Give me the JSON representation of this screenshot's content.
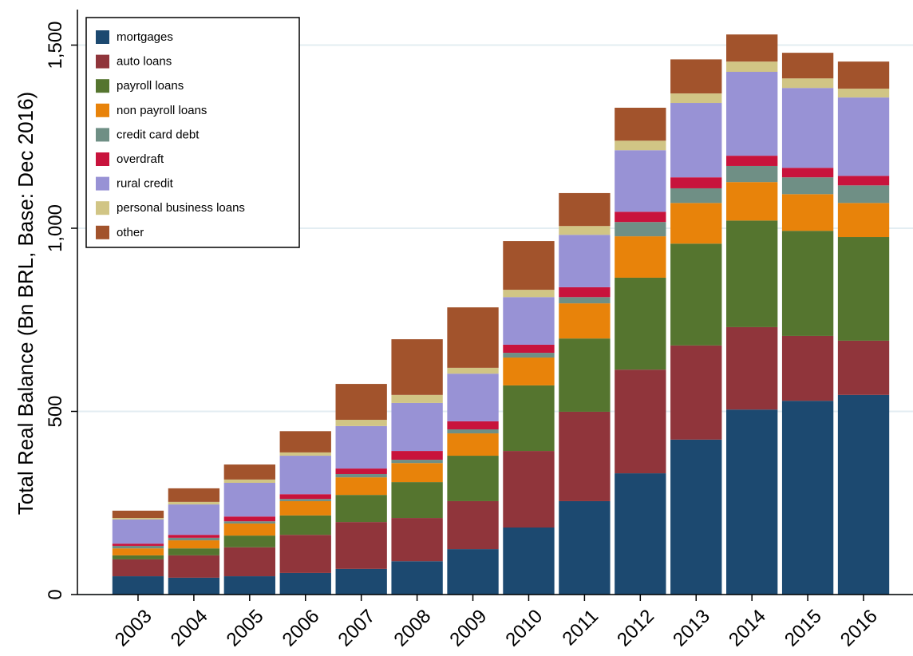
{
  "chart_data": {
    "type": "stacked_bar",
    "y_label": "Total Real Balance (Bn BRL, Base: Dec 2016)",
    "categories": [
      "2003",
      "2004",
      "2005",
      "2006",
      "2007",
      "2008",
      "2009",
      "2010",
      "2011",
      "2012",
      "2013",
      "2014",
      "2015",
      "2016"
    ],
    "series": [
      {
        "name": "mortgages",
        "color": "#1c4970",
        "values": [
          50,
          46,
          50,
          59,
          70,
          91,
          124,
          183,
          255,
          331,
          423,
          505,
          529,
          545
        ]
      },
      {
        "name": "auto loans",
        "color": "#90353b",
        "values": [
          46,
          61,
          79,
          104,
          128,
          118,
          131,
          209,
          244,
          283,
          257,
          225,
          177,
          148
        ]
      },
      {
        "name": "payroll loans",
        "color": "#55752f",
        "values": [
          11,
          19,
          32,
          53,
          74,
          98,
          124,
          179,
          200,
          251,
          278,
          291,
          287,
          283
        ]
      },
      {
        "name": "non payroll loans",
        "color": "#e8830a",
        "values": [
          19,
          22,
          33,
          39,
          48,
          52,
          61,
          76,
          96,
          113,
          111,
          105,
          100,
          93
        ]
      },
      {
        "name": "credit card debt",
        "color": "#6f8f85",
        "values": [
          7,
          7,
          6,
          6,
          9,
          9,
          11,
          13,
          17,
          39,
          40,
          44,
          46,
          48
        ]
      },
      {
        "name": "overdraft",
        "color": "#c8133c",
        "values": [
          6,
          8,
          13,
          13,
          15,
          24,
          22,
          22,
          27,
          28,
          30,
          28,
          26,
          26
        ]
      },
      {
        "name": "rural credit",
        "color": "#9892d5",
        "values": [
          66,
          83,
          92,
          105,
          116,
          131,
          130,
          130,
          143,
          168,
          203,
          229,
          218,
          214
        ]
      },
      {
        "name": "personal business loans",
        "color": "#d1c585",
        "values": [
          4,
          7,
          9,
          9,
          17,
          22,
          16,
          20,
          24,
          26,
          26,
          28,
          26,
          24
        ]
      },
      {
        "name": "other",
        "color": "#a2532c",
        "values": [
          20,
          37,
          41,
          58,
          98,
          152,
          165,
          133,
          90,
          90,
          93,
          74,
          70,
          74
        ]
      }
    ],
    "ylim": [
      0,
      1600
    ],
    "yticks": [
      0,
      500,
      {
        "value": 1000,
        "label": "1,000"
      },
      {
        "value": 1500,
        "label": "1,500"
      }
    ],
    "grid": true,
    "legend": "top-left"
  }
}
